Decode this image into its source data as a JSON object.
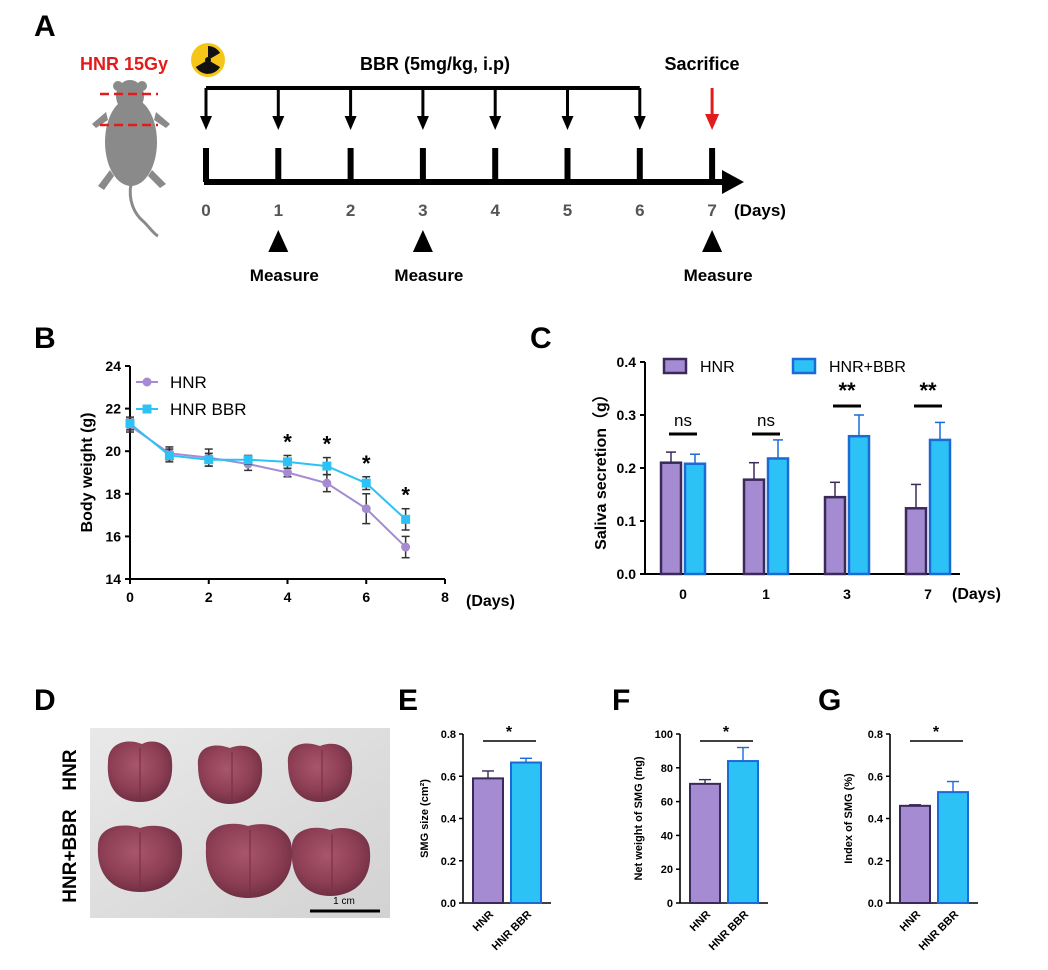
{
  "colors": {
    "hnr": "#a58bd1",
    "hnr_bbr": "#2dc2f5",
    "red": "#e31b1b",
    "bar_stroke": "#3a2a5a",
    "bbr_stroke": "#1a6bd6"
  },
  "panelA": {
    "label": "A",
    "hnr_dose": "HNR 15Gy",
    "treatment": "BBR (5mg/kg, i.p)",
    "sacrifice": "Sacrifice",
    "days": [
      "0",
      "1",
      "2",
      "3",
      "4",
      "5",
      "6",
      "7"
    ],
    "days_unit": "(Days)",
    "measure_label": "Measure",
    "measure_days": [
      1,
      3,
      7
    ],
    "treatment_days": [
      0,
      1,
      2,
      3,
      4,
      5,
      6
    ],
    "sacrifice_day": 7,
    "icons": {
      "radiation": "radiation-icon",
      "mouse": "mouse-icon"
    }
  },
  "panelB": {
    "label": "B",
    "chart_data": {
      "type": "line",
      "ylabel": "Body weight (g)",
      "xlabel": "(Days)",
      "xlim": [
        0,
        8
      ],
      "ylim": [
        14,
        24
      ],
      "xticks": [
        "0",
        "2",
        "4",
        "6",
        "8"
      ],
      "yticks": [
        "14",
        "16",
        "18",
        "20",
        "22",
        "24"
      ],
      "x": [
        0,
        1,
        2,
        3,
        4,
        5,
        6,
        7
      ],
      "series": [
        {
          "name": "HNR",
          "values": [
            21.2,
            19.9,
            19.7,
            19.4,
            19.0,
            18.5,
            17.3,
            15.5
          ],
          "errors": [
            0.3,
            0.3,
            0.4,
            0.3,
            0.2,
            0.4,
            0.7,
            0.5
          ],
          "marker": "circle"
        },
        {
          "name": "HNR BBR",
          "values": [
            21.3,
            19.8,
            19.6,
            19.6,
            19.5,
            19.3,
            18.5,
            16.8
          ],
          "errors": [
            0.3,
            0.3,
            0.3,
            0.2,
            0.3,
            0.4,
            0.3,
            0.5
          ],
          "marker": "square"
        }
      ],
      "significance": {
        "x": [
          4,
          5,
          6,
          7
        ],
        "mark": "*"
      },
      "legend": "top-left"
    }
  },
  "panelC": {
    "label": "C",
    "chart_data": {
      "type": "bar",
      "ylabel": "Saliva secretion（g）",
      "categories": [
        "0",
        "1",
        "3",
        "7"
      ],
      "xunit": "(Days)",
      "ylim": [
        0,
        0.4
      ],
      "yticks": [
        "0.0",
        "0.1",
        "0.2",
        "0.3",
        "0.4"
      ],
      "series": [
        {
          "name": "HNR",
          "values": [
            0.21,
            0.178,
            0.145,
            0.124
          ],
          "errors": [
            0.02,
            0.032,
            0.028,
            0.045
          ]
        },
        {
          "name": "HNR+BBR",
          "values": [
            0.208,
            0.218,
            0.26,
            0.253
          ],
          "errors": [
            0.018,
            0.035,
            0.04,
            0.033
          ]
        }
      ],
      "significance": [
        "ns",
        "ns",
        "**",
        "**"
      ],
      "legend": "top"
    }
  },
  "panelD": {
    "label": "D",
    "row_labels": [
      "HNR",
      "HNR+BBR"
    ],
    "scale_bar": "1 cm"
  },
  "panelE": {
    "label": "E",
    "chart_data": {
      "type": "bar",
      "ylabel": "SMG size (cm²)",
      "categories": [
        "HNR",
        "HNR BBR"
      ],
      "values": [
        0.59,
        0.665
      ],
      "errors": [
        0.035,
        0.02
      ],
      "ylim": [
        0,
        0.8
      ],
      "yticks": [
        "0.0",
        "0.2",
        "0.4",
        "0.6",
        "0.8"
      ],
      "significance": "*"
    }
  },
  "panelF": {
    "label": "F",
    "chart_data": {
      "type": "bar",
      "ylabel": "Net weight of SMG (mg)",
      "categories": [
        "HNR",
        "HNR BBR"
      ],
      "values": [
        70.5,
        84
      ],
      "errors": [
        2.5,
        8
      ],
      "ylim": [
        0,
        100
      ],
      "yticks": [
        "0",
        "20",
        "40",
        "60",
        "80",
        "100"
      ],
      "significance": "*"
    }
  },
  "panelG": {
    "label": "G",
    "chart_data": {
      "type": "bar",
      "ylabel": "Index of SMG (%)",
      "categories": [
        "HNR",
        "HNR BBR"
      ],
      "values": [
        0.46,
        0.525
      ],
      "errors": [
        0.005,
        0.05
      ],
      "ylim": [
        0,
        0.8
      ],
      "yticks": [
        "0.0",
        "0.2",
        "0.4",
        "0.6",
        "0.8"
      ],
      "significance": "*"
    }
  }
}
